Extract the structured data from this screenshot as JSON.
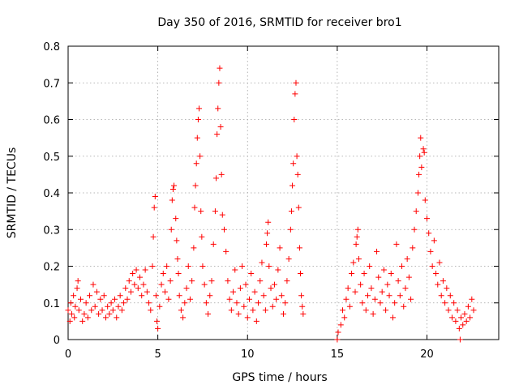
{
  "chart_data": {
    "type": "scatter",
    "title": "Day 350 of 2016, SRMTID for receiver bro1",
    "xlabel": "GPS time / hours",
    "ylabel": "SRMTID / TECUs",
    "xlim": [
      0,
      24
    ],
    "ylim": [
      0,
      0.8
    ],
    "x_ticks": [
      "0",
      "5",
      "10",
      "15",
      "20"
    ],
    "x_tick_values": [
      0,
      5,
      10,
      15,
      20
    ],
    "y_ticks": [
      "0",
      "0.1",
      "0.2",
      "0.3",
      "0.4",
      "0.5",
      "0.6",
      "0.7",
      "0.8"
    ],
    "y_tick_values": [
      0,
      0.1,
      0.2,
      0.3,
      0.4,
      0.5,
      0.6,
      0.7,
      0.8
    ],
    "grid": true,
    "marker": "plus",
    "series": [
      {
        "name": "SRMTID",
        "color": "#ff0000",
        "points": [
          [
            0.0,
            0.08
          ],
          [
            0.1,
            0.05
          ],
          [
            0.15,
            0.1
          ],
          [
            0.2,
            0.07
          ],
          [
            0.3,
            0.12
          ],
          [
            0.35,
            0.06
          ],
          [
            0.4,
            0.09
          ],
          [
            0.5,
            0.14
          ],
          [
            0.55,
            0.16
          ],
          [
            0.6,
            0.08
          ],
          [
            0.7,
            0.11
          ],
          [
            0.8,
            0.05
          ],
          [
            0.9,
            0.07
          ],
          [
            1.0,
            0.1
          ],
          [
            1.1,
            0.06
          ],
          [
            1.2,
            0.12
          ],
          [
            1.3,
            0.08
          ],
          [
            1.4,
            0.15
          ],
          [
            1.5,
            0.09
          ],
          [
            1.6,
            0.13
          ],
          [
            1.7,
            0.07
          ],
          [
            1.8,
            0.11
          ],
          [
            1.9,
            0.08
          ],
          [
            2.0,
            0.12
          ],
          [
            2.1,
            0.06
          ],
          [
            2.2,
            0.09
          ],
          [
            2.3,
            0.07
          ],
          [
            2.4,
            0.1
          ],
          [
            2.5,
            0.08
          ],
          [
            2.6,
            0.11
          ],
          [
            2.7,
            0.06
          ],
          [
            2.8,
            0.09
          ],
          [
            2.9,
            0.12
          ],
          [
            3.0,
            0.08
          ],
          [
            3.1,
            0.1
          ],
          [
            3.2,
            0.14
          ],
          [
            3.3,
            0.11
          ],
          [
            3.4,
            0.16
          ],
          [
            3.5,
            0.13
          ],
          [
            3.6,
            0.18
          ],
          [
            3.7,
            0.15
          ],
          [
            3.8,
            0.19
          ],
          [
            3.9,
            0.14
          ],
          [
            4.0,
            0.17
          ],
          [
            4.1,
            0.12
          ],
          [
            4.2,
            0.15
          ],
          [
            4.3,
            0.19
          ],
          [
            4.4,
            0.13
          ],
          [
            4.5,
            0.1
          ],
          [
            4.6,
            0.08
          ],
          [
            4.7,
            0.2
          ],
          [
            4.75,
            0.28
          ],
          [
            4.8,
            0.36
          ],
          [
            4.85,
            0.39
          ],
          [
            4.9,
            0.12
          ],
          [
            4.95,
            0.05
          ],
          [
            5.0,
            0.03
          ],
          [
            5.1,
            0.09
          ],
          [
            5.2,
            0.15
          ],
          [
            5.3,
            0.18
          ],
          [
            5.4,
            0.13
          ],
          [
            5.5,
            0.2
          ],
          [
            5.6,
            0.11
          ],
          [
            5.7,
            0.16
          ],
          [
            5.75,
            0.3
          ],
          [
            5.8,
            0.38
          ],
          [
            5.85,
            0.41
          ],
          [
            5.9,
            0.42
          ],
          [
            6.0,
            0.33
          ],
          [
            6.05,
            0.27
          ],
          [
            6.1,
            0.22
          ],
          [
            6.15,
            0.18
          ],
          [
            6.2,
            0.12
          ],
          [
            6.3,
            0.08
          ],
          [
            6.4,
            0.06
          ],
          [
            6.5,
            0.1
          ],
          [
            6.6,
            0.14
          ],
          [
            6.7,
            0.2
          ],
          [
            6.8,
            0.11
          ],
          [
            6.9,
            0.16
          ],
          [
            7.0,
            0.25
          ],
          [
            7.05,
            0.36
          ],
          [
            7.1,
            0.42
          ],
          [
            7.15,
            0.48
          ],
          [
            7.2,
            0.55
          ],
          [
            7.25,
            0.6
          ],
          [
            7.3,
            0.63
          ],
          [
            7.35,
            0.5
          ],
          [
            7.4,
            0.35
          ],
          [
            7.45,
            0.28
          ],
          [
            7.5,
            0.2
          ],
          [
            7.6,
            0.15
          ],
          [
            7.7,
            0.1
          ],
          [
            7.8,
            0.07
          ],
          [
            7.9,
            0.12
          ],
          [
            8.0,
            0.16
          ],
          [
            8.1,
            0.26
          ],
          [
            8.2,
            0.35
          ],
          [
            8.25,
            0.44
          ],
          [
            8.3,
            0.56
          ],
          [
            8.35,
            0.63
          ],
          [
            8.4,
            0.7
          ],
          [
            8.45,
            0.74
          ],
          [
            8.5,
            0.58
          ],
          [
            8.55,
            0.45
          ],
          [
            8.6,
            0.34
          ],
          [
            8.7,
            0.3
          ],
          [
            8.8,
            0.24
          ],
          [
            8.9,
            0.16
          ],
          [
            9.0,
            0.11
          ],
          [
            9.1,
            0.08
          ],
          [
            9.2,
            0.13
          ],
          [
            9.3,
            0.19
          ],
          [
            9.4,
            0.1
          ],
          [
            9.5,
            0.07
          ],
          [
            9.6,
            0.14
          ],
          [
            9.7,
            0.2
          ],
          [
            9.8,
            0.09
          ],
          [
            9.9,
            0.15
          ],
          [
            10.0,
            0.06
          ],
          [
            10.1,
            0.11
          ],
          [
            10.2,
            0.18
          ],
          [
            10.3,
            0.08
          ],
          [
            10.4,
            0.13
          ],
          [
            10.5,
            0.05
          ],
          [
            10.6,
            0.1
          ],
          [
            10.7,
            0.16
          ],
          [
            10.8,
            0.21
          ],
          [
            10.9,
            0.12
          ],
          [
            11.0,
            0.08
          ],
          [
            11.05,
            0.26
          ],
          [
            11.1,
            0.29
          ],
          [
            11.15,
            0.32
          ],
          [
            11.2,
            0.2
          ],
          [
            11.3,
            0.14
          ],
          [
            11.4,
            0.09
          ],
          [
            11.5,
            0.15
          ],
          [
            11.6,
            0.11
          ],
          [
            11.7,
            0.19
          ],
          [
            11.8,
            0.25
          ],
          [
            11.9,
            0.12
          ],
          [
            12.0,
            0.07
          ],
          [
            12.1,
            0.1
          ],
          [
            12.2,
            0.16
          ],
          [
            12.3,
            0.22
          ],
          [
            12.4,
            0.3
          ],
          [
            12.45,
            0.35
          ],
          [
            12.5,
            0.42
          ],
          [
            12.55,
            0.48
          ],
          [
            12.6,
            0.6
          ],
          [
            12.65,
            0.67
          ],
          [
            12.7,
            0.7
          ],
          [
            12.75,
            0.5
          ],
          [
            12.8,
            0.45
          ],
          [
            12.85,
            0.36
          ],
          [
            12.9,
            0.25
          ],
          [
            12.95,
            0.18
          ],
          [
            13.0,
            0.12
          ],
          [
            13.05,
            0.09
          ],
          [
            13.1,
            0.07
          ],
          [
            15.0,
            0.0
          ],
          [
            15.05,
            0.02
          ],
          [
            15.2,
            0.04
          ],
          [
            15.3,
            0.08
          ],
          [
            15.4,
            0.06
          ],
          [
            15.5,
            0.11
          ],
          [
            15.6,
            0.14
          ],
          [
            15.7,
            0.09
          ],
          [
            15.8,
            0.18
          ],
          [
            15.9,
            0.21
          ],
          [
            16.0,
            0.13
          ],
          [
            16.05,
            0.26
          ],
          [
            16.1,
            0.28
          ],
          [
            16.15,
            0.3
          ],
          [
            16.2,
            0.22
          ],
          [
            16.3,
            0.15
          ],
          [
            16.4,
            0.1
          ],
          [
            16.5,
            0.18
          ],
          [
            16.6,
            0.08
          ],
          [
            16.7,
            0.12
          ],
          [
            16.8,
            0.2
          ],
          [
            16.9,
            0.14
          ],
          [
            17.0,
            0.07
          ],
          [
            17.1,
            0.11
          ],
          [
            17.2,
            0.24
          ],
          [
            17.3,
            0.17
          ],
          [
            17.4,
            0.1
          ],
          [
            17.5,
            0.13
          ],
          [
            17.6,
            0.19
          ],
          [
            17.7,
            0.08
          ],
          [
            17.8,
            0.15
          ],
          [
            17.9,
            0.12
          ],
          [
            18.0,
            0.18
          ],
          [
            18.1,
            0.06
          ],
          [
            18.2,
            0.1
          ],
          [
            18.3,
            0.26
          ],
          [
            18.4,
            0.16
          ],
          [
            18.5,
            0.12
          ],
          [
            18.6,
            0.2
          ],
          [
            18.7,
            0.09
          ],
          [
            18.8,
            0.14
          ],
          [
            18.9,
            0.22
          ],
          [
            19.0,
            0.17
          ],
          [
            19.1,
            0.11
          ],
          [
            19.2,
            0.25
          ],
          [
            19.3,
            0.3
          ],
          [
            19.4,
            0.35
          ],
          [
            19.5,
            0.4
          ],
          [
            19.55,
            0.45
          ],
          [
            19.6,
            0.5
          ],
          [
            19.65,
            0.55
          ],
          [
            19.7,
            0.47
          ],
          [
            19.8,
            0.52
          ],
          [
            19.85,
            0.51
          ],
          [
            19.9,
            0.38
          ],
          [
            20.0,
            0.33
          ],
          [
            20.1,
            0.29
          ],
          [
            20.2,
            0.24
          ],
          [
            20.3,
            0.2
          ],
          [
            20.4,
            0.27
          ],
          [
            20.5,
            0.18
          ],
          [
            20.6,
            0.15
          ],
          [
            20.7,
            0.21
          ],
          [
            20.8,
            0.12
          ],
          [
            20.9,
            0.16
          ],
          [
            21.0,
            0.1
          ],
          [
            21.1,
            0.14
          ],
          [
            21.2,
            0.08
          ],
          [
            21.3,
            0.12
          ],
          [
            21.4,
            0.06
          ],
          [
            21.5,
            0.1
          ],
          [
            21.6,
            0.05
          ],
          [
            21.7,
            0.08
          ],
          [
            21.8,
            0.03
          ],
          [
            21.85,
            0.0
          ],
          [
            21.9,
            0.06
          ],
          [
            22.0,
            0.04
          ],
          [
            22.1,
            0.07
          ],
          [
            22.2,
            0.05
          ],
          [
            22.3,
            0.09
          ],
          [
            22.4,
            0.06
          ],
          [
            22.5,
            0.11
          ],
          [
            22.6,
            0.08
          ]
        ]
      }
    ]
  }
}
